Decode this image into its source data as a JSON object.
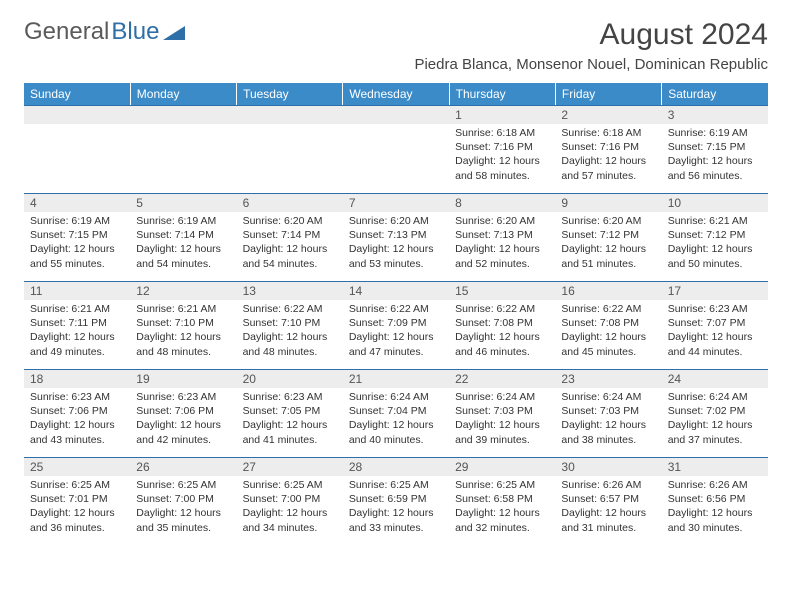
{
  "brand": {
    "part1": "General",
    "part2": "Blue"
  },
  "title": "August 2024",
  "location": "Piedra Blanca, Monsenor Nouel, Dominican Republic",
  "colors": {
    "header_bg": "#3b8bc9",
    "header_text": "#ffffff",
    "daynum_bg": "#ededed",
    "daynum_border": "#2f6fa7",
    "text": "#333333",
    "brand_gray": "#5a5a5a",
    "brand_blue": "#2f6fa7"
  },
  "weekdays": [
    "Sunday",
    "Monday",
    "Tuesday",
    "Wednesday",
    "Thursday",
    "Friday",
    "Saturday"
  ],
  "weeks": [
    [
      null,
      null,
      null,
      null,
      {
        "n": "1",
        "sr": "6:18 AM",
        "ss": "7:16 PM",
        "dl": "12 hours and 58 minutes."
      },
      {
        "n": "2",
        "sr": "6:18 AM",
        "ss": "7:16 PM",
        "dl": "12 hours and 57 minutes."
      },
      {
        "n": "3",
        "sr": "6:19 AM",
        "ss": "7:15 PM",
        "dl": "12 hours and 56 minutes."
      }
    ],
    [
      {
        "n": "4",
        "sr": "6:19 AM",
        "ss": "7:15 PM",
        "dl": "12 hours and 55 minutes."
      },
      {
        "n": "5",
        "sr": "6:19 AM",
        "ss": "7:14 PM",
        "dl": "12 hours and 54 minutes."
      },
      {
        "n": "6",
        "sr": "6:20 AM",
        "ss": "7:14 PM",
        "dl": "12 hours and 54 minutes."
      },
      {
        "n": "7",
        "sr": "6:20 AM",
        "ss": "7:13 PM",
        "dl": "12 hours and 53 minutes."
      },
      {
        "n": "8",
        "sr": "6:20 AM",
        "ss": "7:13 PM",
        "dl": "12 hours and 52 minutes."
      },
      {
        "n": "9",
        "sr": "6:20 AM",
        "ss": "7:12 PM",
        "dl": "12 hours and 51 minutes."
      },
      {
        "n": "10",
        "sr": "6:21 AM",
        "ss": "7:12 PM",
        "dl": "12 hours and 50 minutes."
      }
    ],
    [
      {
        "n": "11",
        "sr": "6:21 AM",
        "ss": "7:11 PM",
        "dl": "12 hours and 49 minutes."
      },
      {
        "n": "12",
        "sr": "6:21 AM",
        "ss": "7:10 PM",
        "dl": "12 hours and 48 minutes."
      },
      {
        "n": "13",
        "sr": "6:22 AM",
        "ss": "7:10 PM",
        "dl": "12 hours and 48 minutes."
      },
      {
        "n": "14",
        "sr": "6:22 AM",
        "ss": "7:09 PM",
        "dl": "12 hours and 47 minutes."
      },
      {
        "n": "15",
        "sr": "6:22 AM",
        "ss": "7:08 PM",
        "dl": "12 hours and 46 minutes."
      },
      {
        "n": "16",
        "sr": "6:22 AM",
        "ss": "7:08 PM",
        "dl": "12 hours and 45 minutes."
      },
      {
        "n": "17",
        "sr": "6:23 AM",
        "ss": "7:07 PM",
        "dl": "12 hours and 44 minutes."
      }
    ],
    [
      {
        "n": "18",
        "sr": "6:23 AM",
        "ss": "7:06 PM",
        "dl": "12 hours and 43 minutes."
      },
      {
        "n": "19",
        "sr": "6:23 AM",
        "ss": "7:06 PM",
        "dl": "12 hours and 42 minutes."
      },
      {
        "n": "20",
        "sr": "6:23 AM",
        "ss": "7:05 PM",
        "dl": "12 hours and 41 minutes."
      },
      {
        "n": "21",
        "sr": "6:24 AM",
        "ss": "7:04 PM",
        "dl": "12 hours and 40 minutes."
      },
      {
        "n": "22",
        "sr": "6:24 AM",
        "ss": "7:03 PM",
        "dl": "12 hours and 39 minutes."
      },
      {
        "n": "23",
        "sr": "6:24 AM",
        "ss": "7:03 PM",
        "dl": "12 hours and 38 minutes."
      },
      {
        "n": "24",
        "sr": "6:24 AM",
        "ss": "7:02 PM",
        "dl": "12 hours and 37 minutes."
      }
    ],
    [
      {
        "n": "25",
        "sr": "6:25 AM",
        "ss": "7:01 PM",
        "dl": "12 hours and 36 minutes."
      },
      {
        "n": "26",
        "sr": "6:25 AM",
        "ss": "7:00 PM",
        "dl": "12 hours and 35 minutes."
      },
      {
        "n": "27",
        "sr": "6:25 AM",
        "ss": "7:00 PM",
        "dl": "12 hours and 34 minutes."
      },
      {
        "n": "28",
        "sr": "6:25 AM",
        "ss": "6:59 PM",
        "dl": "12 hours and 33 minutes."
      },
      {
        "n": "29",
        "sr": "6:25 AM",
        "ss": "6:58 PM",
        "dl": "12 hours and 32 minutes."
      },
      {
        "n": "30",
        "sr": "6:26 AM",
        "ss": "6:57 PM",
        "dl": "12 hours and 31 minutes."
      },
      {
        "n": "31",
        "sr": "6:26 AM",
        "ss": "6:56 PM",
        "dl": "12 hours and 30 minutes."
      }
    ]
  ],
  "labels": {
    "sunrise": "Sunrise: ",
    "sunset": "Sunset: ",
    "daylight": "Daylight: "
  }
}
